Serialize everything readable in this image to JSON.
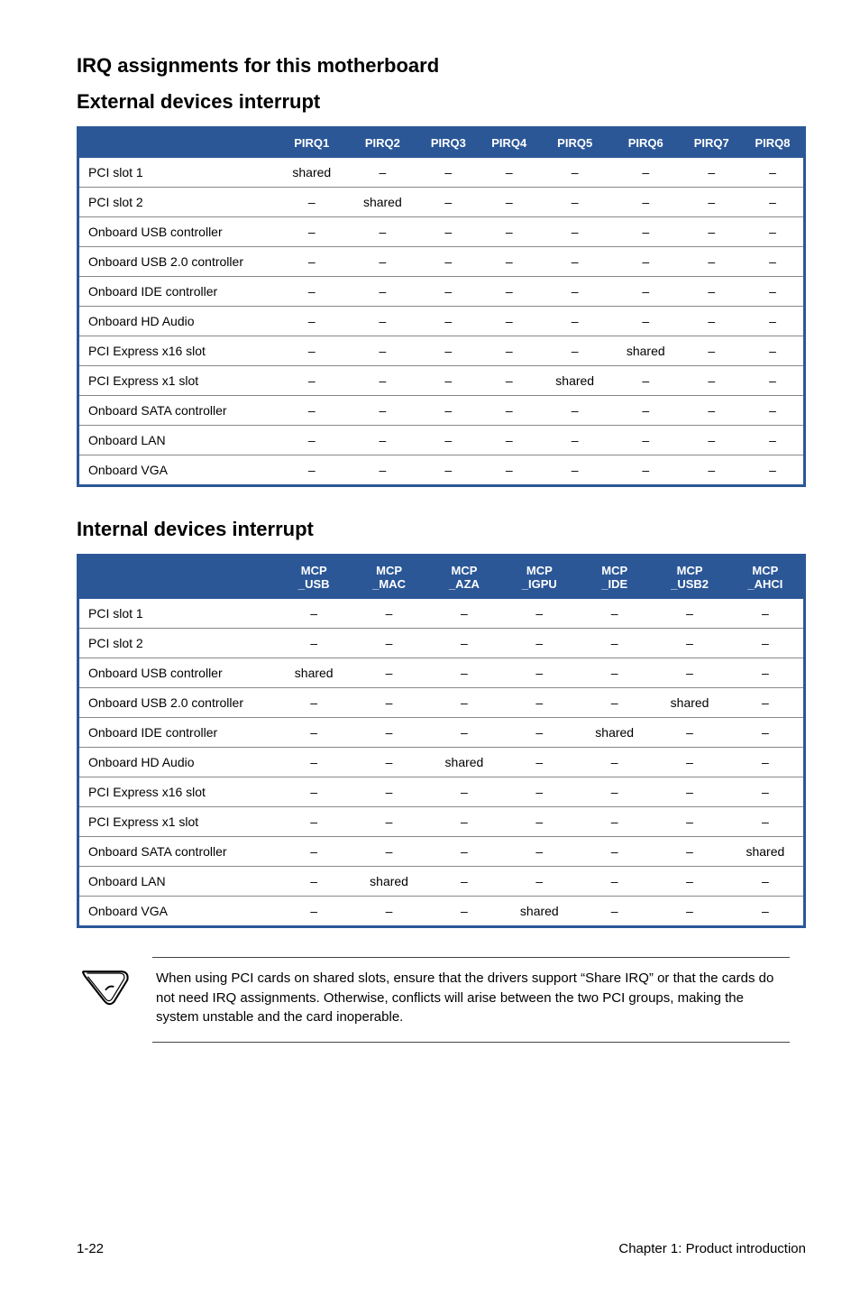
{
  "headings": {
    "main": "IRQ assignments for this motherboard",
    "external": "External devices interrupt",
    "internal": "Internal devices interrupt"
  },
  "colors": {
    "header_bg": "#2b5797",
    "header_fg": "#ffffff",
    "row_border": "#888888",
    "page_bg": "#ffffff",
    "note_border": "#444444"
  },
  "table_external": {
    "headers": [
      "",
      "PIRQ1",
      "PIRQ2",
      "PIRQ3",
      "PIRQ4",
      "PIRQ5",
      "PIRQ6",
      "PIRQ7",
      "PIRQ8"
    ],
    "rows": [
      [
        "PCI slot 1",
        "shared",
        "–",
        "–",
        "–",
        "–",
        "–",
        "–",
        "–"
      ],
      [
        "PCI slot 2",
        "–",
        "shared",
        "–",
        "–",
        "–",
        "–",
        "–",
        "–"
      ],
      [
        "Onboard USB controller",
        "–",
        "–",
        "–",
        "–",
        "–",
        "–",
        "–",
        "–"
      ],
      [
        "Onboard USB 2.0 controller",
        "–",
        "–",
        "–",
        "–",
        "–",
        "–",
        "–",
        "–"
      ],
      [
        "Onboard IDE controller",
        "–",
        "–",
        "–",
        "–",
        "–",
        "–",
        "–",
        "–"
      ],
      [
        "Onboard HD Audio",
        "–",
        "–",
        "–",
        "–",
        "–",
        "–",
        "–",
        "–"
      ],
      [
        "PCI Express x16 slot",
        "–",
        "–",
        "–",
        "–",
        "–",
        "shared",
        "–",
        "–"
      ],
      [
        "PCI Express x1 slot",
        "–",
        "–",
        "–",
        "–",
        "shared",
        "–",
        "–",
        "–"
      ],
      [
        "Onboard SATA controller",
        "–",
        "–",
        "–",
        "–",
        "–",
        "–",
        "–",
        "–"
      ],
      [
        "Onboard LAN",
        "–",
        "–",
        "–",
        "–",
        "–",
        "–",
        "–",
        "–"
      ],
      [
        "Onboard VGA",
        "–",
        "–",
        "–",
        "–",
        "–",
        "–",
        "–",
        "–"
      ]
    ]
  },
  "table_internal": {
    "headers": [
      "",
      "MCP\n_USB",
      "MCP\n_MAC",
      "MCP\n_AZA",
      "MCP\n_IGPU",
      "MCP\n_IDE",
      "MCP\n_USB2",
      "MCP\n_AHCI"
    ],
    "rows": [
      [
        "PCI slot 1",
        "–",
        "–",
        "–",
        "–",
        "–",
        "–",
        "–"
      ],
      [
        "PCI slot 2",
        "–",
        "–",
        "–",
        "–",
        "–",
        "–",
        "–"
      ],
      [
        "Onboard USB controller",
        "shared",
        "–",
        "–",
        "–",
        "–",
        "–",
        "–"
      ],
      [
        "Onboard USB 2.0 controller",
        "–",
        "–",
        "–",
        "–",
        "–",
        "shared",
        "–"
      ],
      [
        "Onboard IDE controller",
        "–",
        "–",
        "–",
        "–",
        "shared",
        "–",
        "–"
      ],
      [
        "Onboard HD Audio",
        "–",
        "–",
        "shared",
        "–",
        "–",
        "–",
        "–"
      ],
      [
        "PCI Express x16 slot",
        "–",
        "–",
        "–",
        "–",
        "–",
        "–",
        "–"
      ],
      [
        "PCI Express x1 slot",
        "–",
        "–",
        "–",
        "–",
        "–",
        "–",
        "–"
      ],
      [
        "Onboard SATA controller",
        "–",
        "–",
        "–",
        "–",
        "–",
        "–",
        "shared"
      ],
      [
        "Onboard LAN",
        "–",
        "shared",
        "–",
        "–",
        "–",
        "–",
        "–"
      ],
      [
        "Onboard VGA",
        "–",
        "–",
        "–",
        "shared",
        "–",
        "–",
        "–"
      ]
    ]
  },
  "note": {
    "text": "When using PCI cards on shared slots, ensure that the drivers support “Share IRQ” or that the cards do not need IRQ assignments. Otherwise, conflicts will arise between the two PCI groups, making the system unstable and the card inoperable."
  },
  "footer": {
    "left": "1-22",
    "right": "Chapter 1: Product introduction"
  }
}
